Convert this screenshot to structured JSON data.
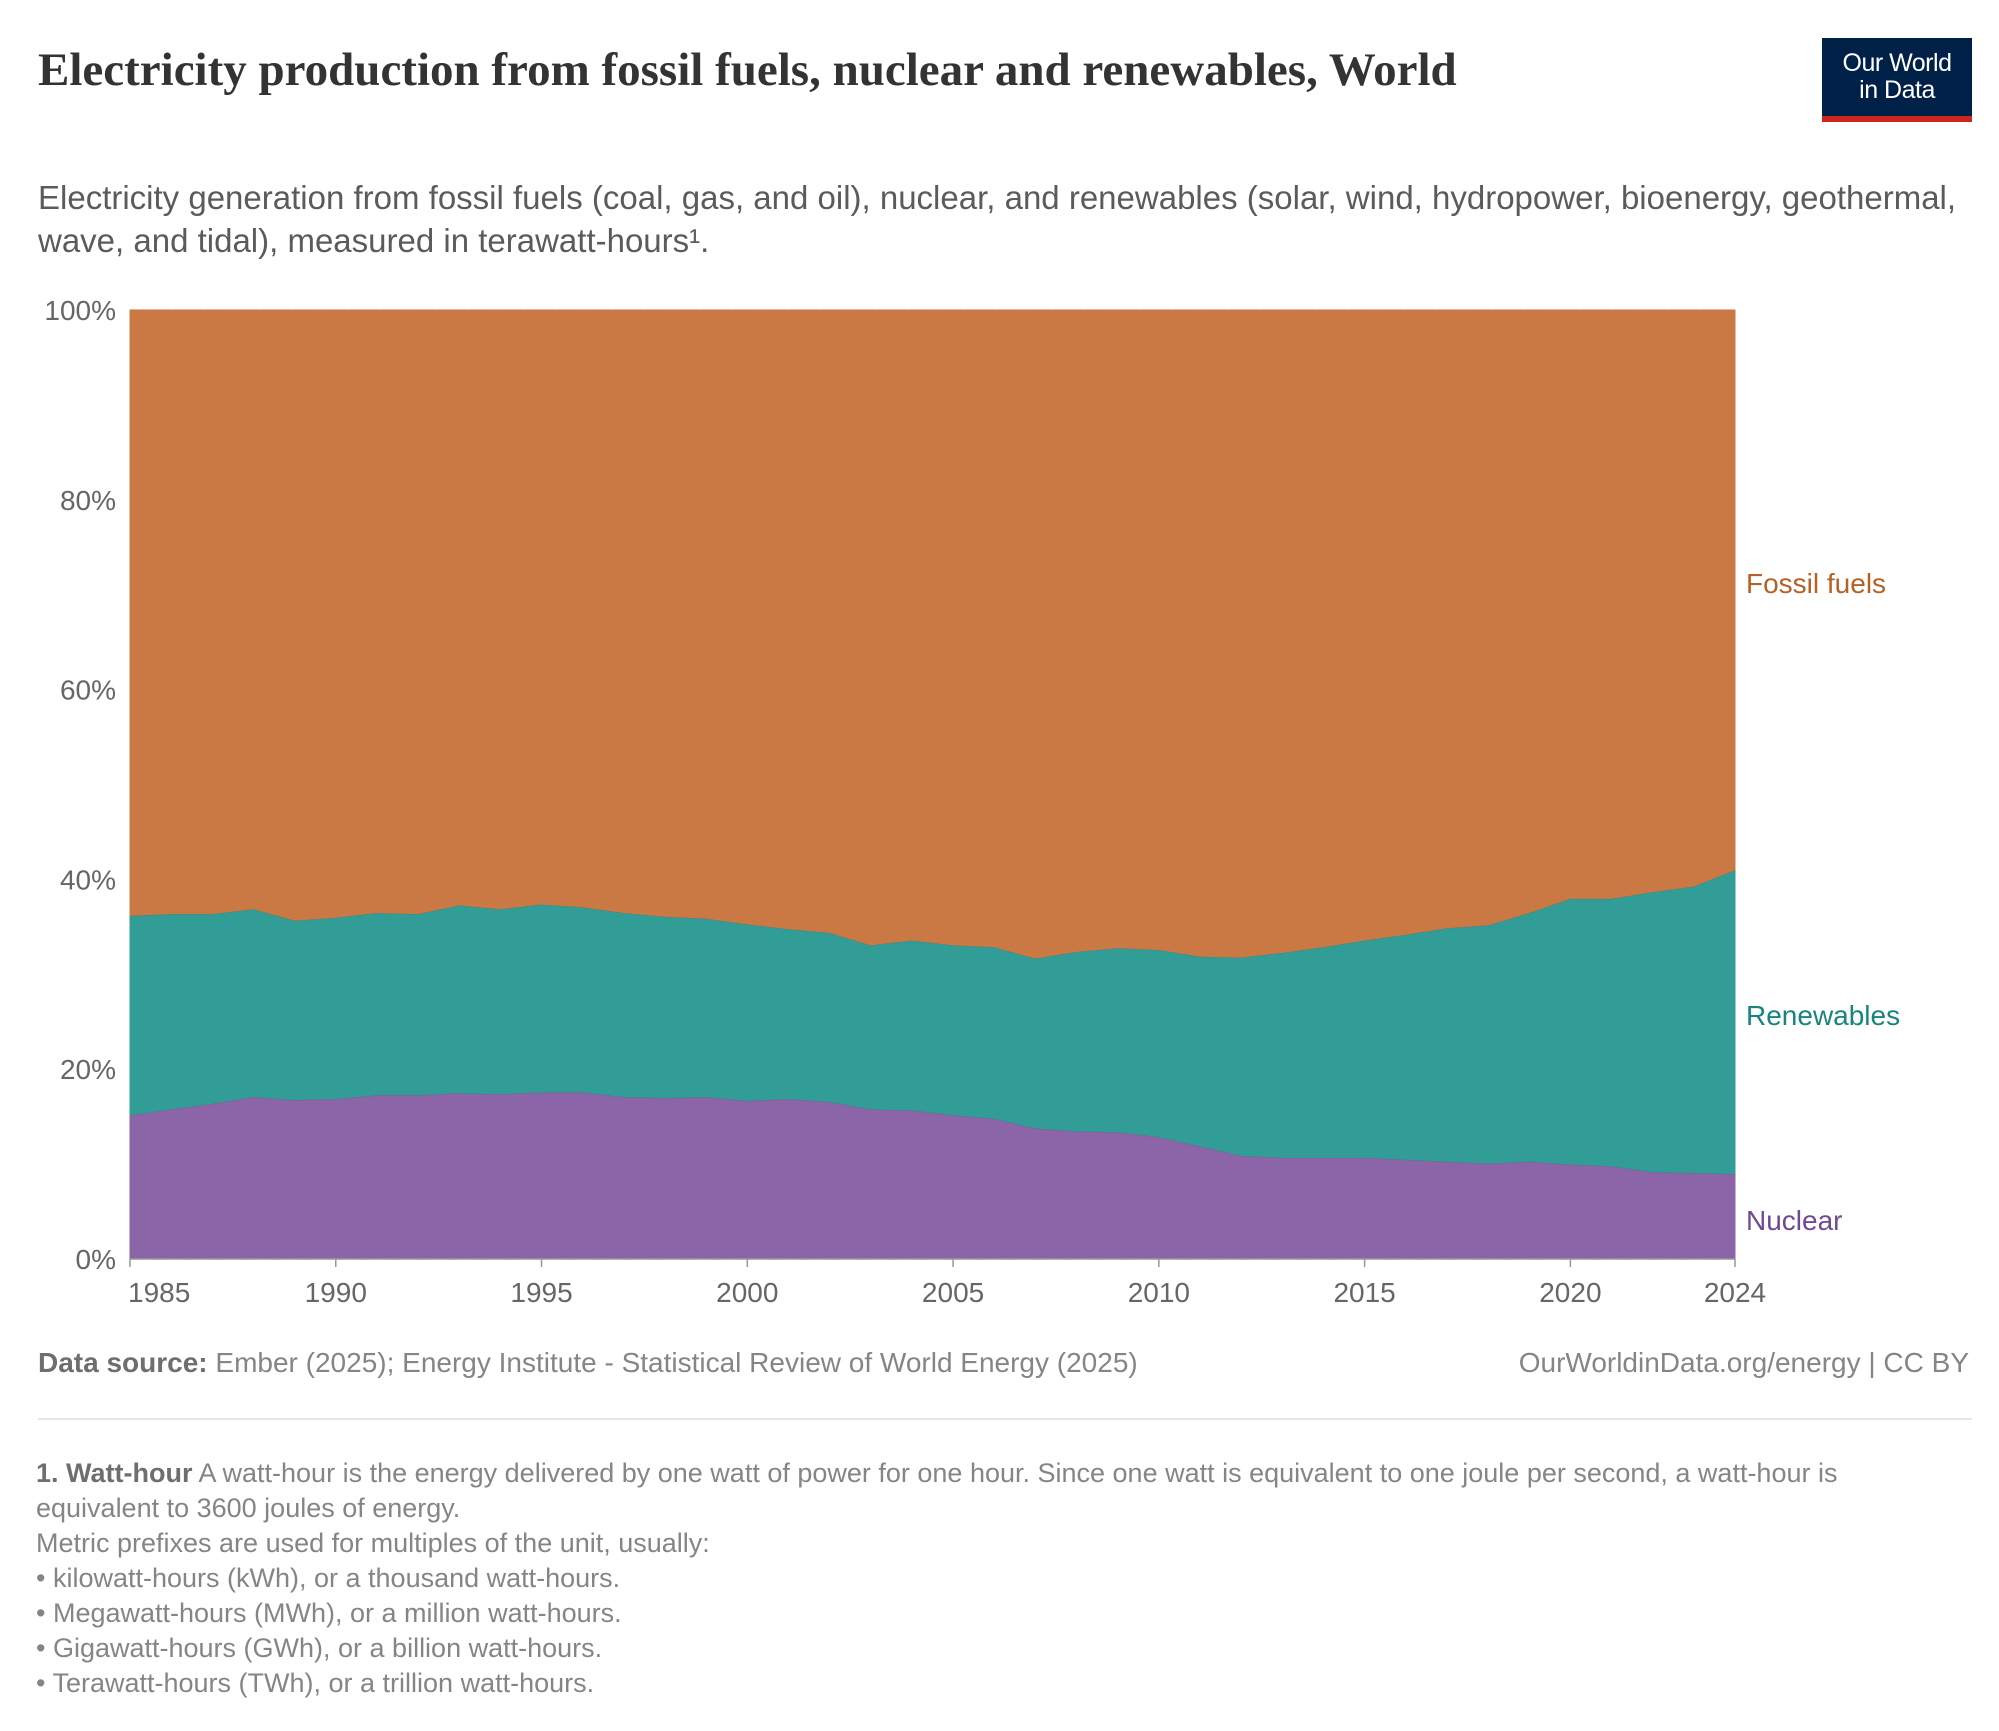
{
  "header": {
    "title": "Electricity production from fossil fuels, nuclear and renewables, World",
    "subtitle": "Electricity generation from fossil fuels (coal, gas, and oil), nuclear, and renewables (solar, wind, hydropower, bioenergy, geothermal, wave, and tidal), measured in terawatt-hours¹.",
    "logo_line1": "Our World",
    "logo_line2": "in Data"
  },
  "colors": {
    "fossil": "#cb7944",
    "renewables": "#329c96",
    "nuclear": "#8b65a7",
    "fossil_label": "#b65f26",
    "renewables_label": "#17857e",
    "nuclear_label": "#6d4a93"
  },
  "chart_data": {
    "type": "area",
    "stacked": "percent",
    "x": [
      1985,
      1986,
      1987,
      1988,
      1989,
      1990,
      1991,
      1992,
      1993,
      1994,
      1995,
      1996,
      1997,
      1998,
      1999,
      2000,
      2001,
      2002,
      2003,
      2004,
      2005,
      2006,
      2007,
      2008,
      2009,
      2010,
      2011,
      2012,
      2013,
      2014,
      2015,
      2016,
      2017,
      2018,
      2019,
      2020,
      2021,
      2022,
      2023,
      2024
    ],
    "series": [
      {
        "name": "Nuclear",
        "values": [
          15.2,
          15.8,
          16.4,
          17.1,
          16.8,
          16.9,
          17.3,
          17.3,
          17.5,
          17.4,
          17.6,
          17.6,
          17.1,
          17.0,
          17.1,
          16.7,
          16.9,
          16.6,
          15.8,
          15.7,
          15.2,
          14.8,
          13.8,
          13.5,
          13.4,
          12.9,
          11.9,
          10.9,
          10.7,
          10.7,
          10.7,
          10.5,
          10.3,
          10.1,
          10.3,
          10.0,
          9.8,
          9.2,
          9.1,
          9.0
        ]
      },
      {
        "name": "Renewables",
        "values": [
          21.0,
          20.6,
          20.0,
          19.8,
          18.9,
          19.1,
          19.2,
          19.1,
          19.8,
          19.5,
          19.8,
          19.5,
          19.4,
          19.1,
          18.8,
          18.6,
          17.9,
          17.8,
          17.3,
          17.9,
          17.9,
          18.1,
          17.9,
          18.9,
          19.4,
          19.7,
          20.0,
          20.9,
          21.6,
          22.2,
          22.9,
          23.7,
          24.6,
          25.1,
          26.2,
          28.0,
          28.2,
          29.5,
          30.2,
          32.0
        ]
      },
      {
        "name": "Fossil fuels",
        "values": [
          63.8,
          63.6,
          63.6,
          63.1,
          64.3,
          64.0,
          63.5,
          63.6,
          62.7,
          63.1,
          62.6,
          62.9,
          63.5,
          63.9,
          64.1,
          64.7,
          65.2,
          65.6,
          66.9,
          66.4,
          66.9,
          67.1,
          68.3,
          67.6,
          67.2,
          67.4,
          68.1,
          68.2,
          67.7,
          67.1,
          66.4,
          65.8,
          65.1,
          64.8,
          63.5,
          62.0,
          62.0,
          61.3,
          60.7,
          59.0
        ]
      }
    ],
    "ylim": [
      0,
      100
    ],
    "y_ticks": [
      "0%",
      "20%",
      "40%",
      "60%",
      "80%",
      "100%"
    ],
    "x_ticks": [
      "1985",
      "1990",
      "1995",
      "2000",
      "2005",
      "2010",
      "2015",
      "2020",
      "2024"
    ],
    "grid": "horizontal dashed",
    "legend": "labels at right end of areas"
  },
  "footer": {
    "source_label": "Data source:",
    "source_text": "Ember (2025); Energy Institute - Statistical Review of World Energy (2025)",
    "license": "OurWorldinData.org/energy | CC BY"
  },
  "notes": {
    "term": "1. Watt-hour",
    "definition": "A watt-hour is the energy delivered by one watt of power for one hour. Since one watt is equivalent to one joule per second, a watt-hour is equivalent to 3600 joules of energy.",
    "prefix_intro": "Metric prefixes are used for multiples of the unit, usually:",
    "bullets": [
      "• kilowatt-hours (kWh), or a thousand watt-hours.",
      "• Megawatt-hours (MWh), or a million watt-hours.",
      "• Gigawatt-hours (GWh), or a billion watt-hours.",
      "• Terawatt-hours (TWh), or a trillion watt-hours."
    ]
  }
}
